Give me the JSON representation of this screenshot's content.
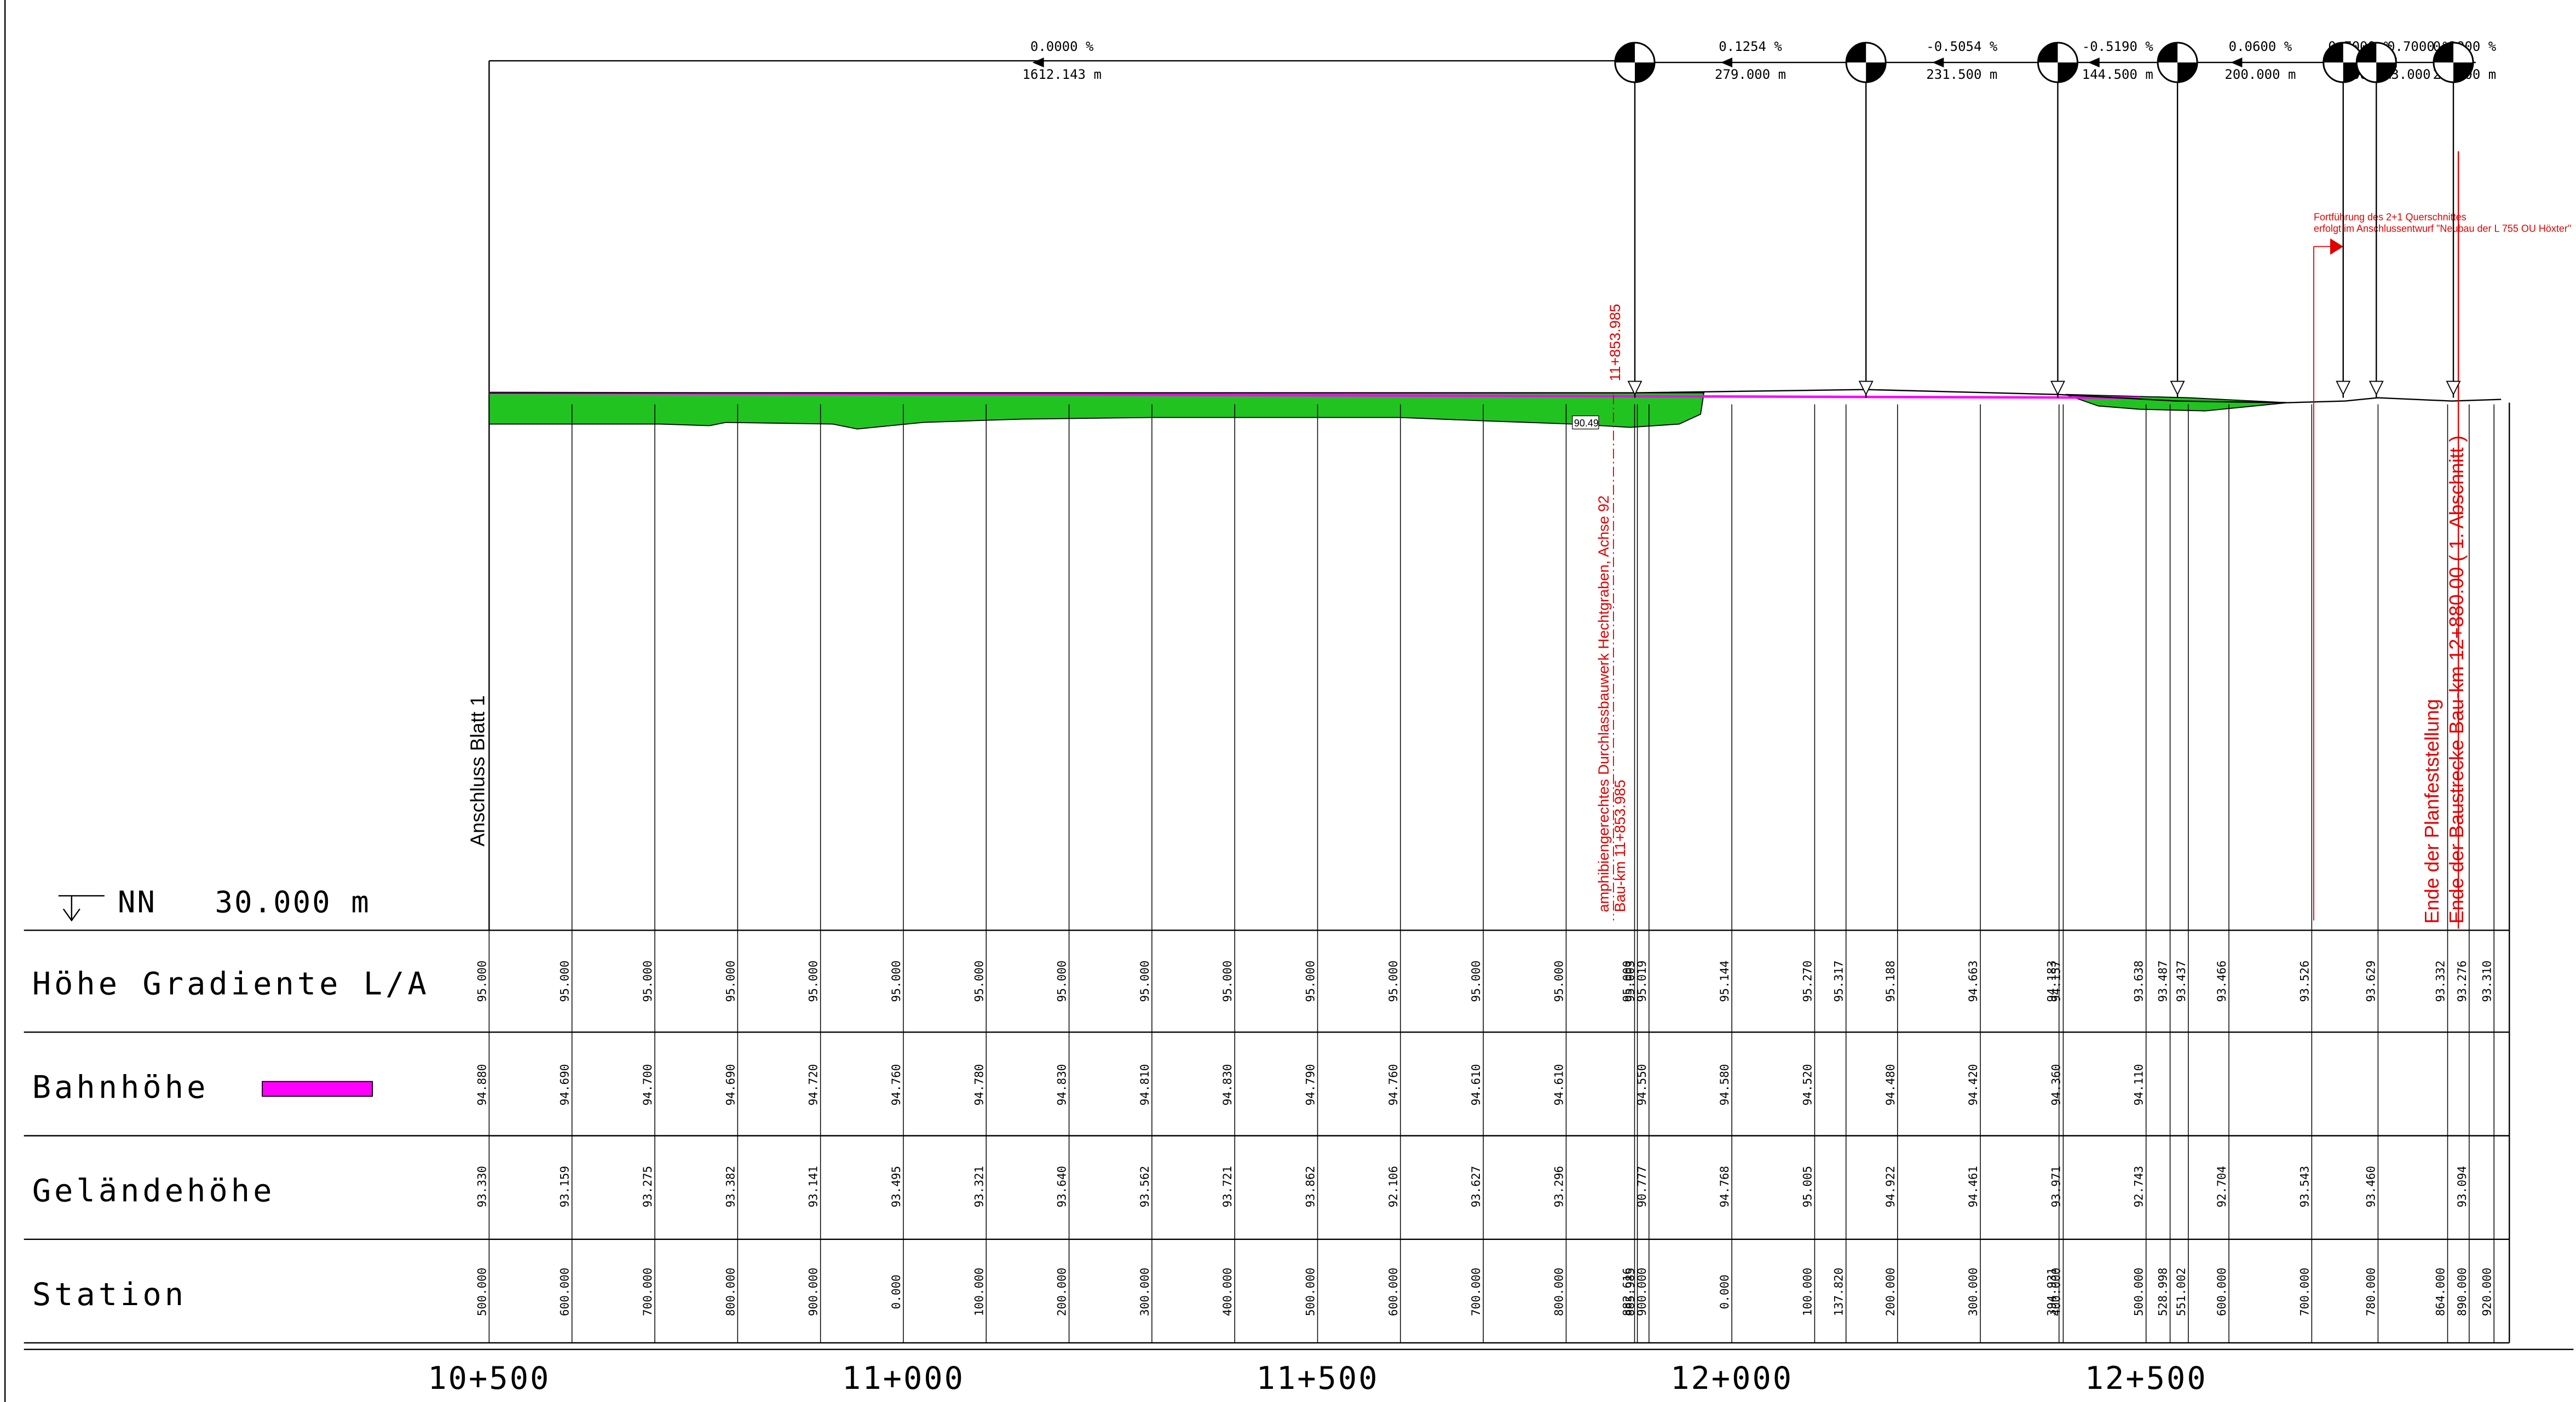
{
  "profile": {
    "grades": [
      {
        "grade": "0.0000 %",
        "length": "1612.143 m"
      },
      {
        "grade": "0.1254 %",
        "length": "279.000 m"
      },
      {
        "grade": "-0.5054 %",
        "length": "231.500 m"
      },
      {
        "grade": "-0.5190 %",
        "length": "144.500 m"
      },
      {
        "grade": "0.0600 %",
        "length": "200.000 m"
      },
      {
        "grade": "0.7000 %",
        "length": "40.000 m"
      },
      {
        "grade": "-0.7000 %",
        "length": "93.000 m"
      },
      {
        "grade": "0.3000 %",
        "length": "27.000 m"
      }
    ],
    "annotations": {
      "connection": "Anschluss Blatt 1",
      "culvert_station": "11+853.985",
      "culvert_text": "amphibiengerechtes Durchlassbauwerk Hechtgraben, Achse 92",
      "culvert_km": "Bau-km 11+853.985",
      "ground_label": "90.49",
      "continuation_1": "Fortführung des 2+1 Querschnittes",
      "continuation_2": "erfolgt im Anschlussentwurf \"Neubau der L 755 OU Höxter\"",
      "end_1": "Ende der Planfeststellung",
      "end_2": "Ende der Baustrecke Bau-km 12+880.00 ( 1. Abschnitt )"
    },
    "datum": "NN   30.000 m"
  },
  "table": {
    "row_labels": [
      "Höhe Gradiente L/A",
      "Bahnhöhe",
      "Geländehöhe",
      "Station"
    ],
    "columns": [
      {
        "station": "500.000",
        "gradient": "95.000",
        "rail": "94.880",
        "terrain": "93.330"
      },
      {
        "station": "600.000",
        "gradient": "95.000",
        "rail": "94.690",
        "terrain": "93.159"
      },
      {
        "station": "700.000",
        "gradient": "95.000",
        "rail": "94.700",
        "terrain": "93.275"
      },
      {
        "station": "800.000",
        "gradient": "95.000",
        "rail": "94.690",
        "terrain": "93.382"
      },
      {
        "station": "900.000",
        "gradient": "95.000",
        "rail": "94.720",
        "terrain": "93.141"
      },
      {
        "station": "0.000",
        "gradient": "95.000",
        "rail": "94.760",
        "terrain": "93.495"
      },
      {
        "station": "100.000",
        "gradient": "95.000",
        "rail": "94.780",
        "terrain": "93.321"
      },
      {
        "station": "200.000",
        "gradient": "95.000",
        "rail": "94.830",
        "terrain": "93.640"
      },
      {
        "station": "300.000",
        "gradient": "95.000",
        "rail": "94.810",
        "terrain": "93.562"
      },
      {
        "station": "400.000",
        "gradient": "95.000",
        "rail": "94.830",
        "terrain": "93.721"
      },
      {
        "station": "500.000",
        "gradient": "95.000",
        "rail": "94.790",
        "terrain": "93.862"
      },
      {
        "station": "600.000",
        "gradient": "95.000",
        "rail": "94.760",
        "terrain": "92.106"
      },
      {
        "station": "700.000",
        "gradient": "95.000",
        "rail": "94.610",
        "terrain": "93.627"
      },
      {
        "station": "800.000",
        "gradient": "95.000",
        "rail": "94.610",
        "terrain": "93.296"
      },
      {
        "station": "882.616",
        "gradient": "95.000",
        "rail": null,
        "terrain": null
      },
      {
        "station": "885.985",
        "gradient": "95.003",
        "rail": null,
        "terrain": null
      },
      {
        "station": "900.000",
        "gradient": "95.019",
        "rail": "94.550",
        "terrain": "90.777"
      },
      {
        "station": "0.000",
        "gradient": "95.144",
        "rail": "94.580",
        "terrain": "94.768"
      },
      {
        "station": "100.000",
        "gradient": "95.270",
        "rail": "94.520",
        "terrain": "95.005"
      },
      {
        "station": "137.820",
        "gradient": "95.317",
        "rail": null,
        "terrain": null
      },
      {
        "station": "200.000",
        "gradient": "95.188",
        "rail": "94.480",
        "terrain": "94.922"
      },
      {
        "station": "300.000",
        "gradient": "94.663",
        "rail": "94.420",
        "terrain": "94.461"
      },
      {
        "station": "394.931",
        "gradient": "94.183",
        "rail": null,
        "terrain": null
      },
      {
        "station": "400.000",
        "gradient": "94.157",
        "rail": "94.360",
        "terrain": "93.971"
      },
      {
        "station": "500.000",
        "gradient": "93.638",
        "rail": "94.110",
        "terrain": "92.743"
      },
      {
        "station": "528.998",
        "gradient": "93.487",
        "rail": null,
        "terrain": null
      },
      {
        "station": "551.002",
        "gradient": "93.437",
        "rail": null,
        "terrain": null
      },
      {
        "station": "600.000",
        "gradient": "93.466",
        "rail": null,
        "terrain": "92.704"
      },
      {
        "station": "700.000",
        "gradient": "93.526",
        "rail": null,
        "terrain": "93.543"
      },
      {
        "station": "780.000",
        "gradient": "93.629",
        "rail": null,
        "terrain": "93.460"
      },
      {
        "station": "864.000",
        "gradient": "93.332",
        "rail": null,
        "terrain": null
      },
      {
        "station": "890.000",
        "gradient": "93.276",
        "rail": null,
        "terrain": "93.094"
      },
      {
        "station": "920.000",
        "gradient": "93.310",
        "rail": null,
        "terrain": null
      }
    ]
  },
  "km_labels": [
    "10+500",
    "11+000",
    "11+500",
    "12+000",
    "12+500"
  ]
}
